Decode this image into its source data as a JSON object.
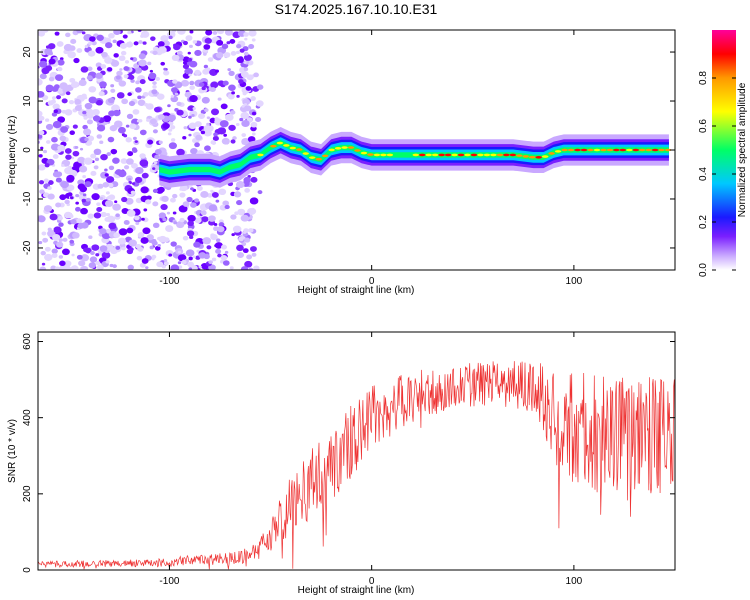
{
  "title": "S174.2025.167.10.10.E31",
  "chart_data": [
    {
      "type": "heatmap",
      "xlabel": "Height of straight line (km)",
      "ylabel": "Frequency (Hz)",
      "xlim": [
        -165,
        150
      ],
      "ylim": [
        -24.5,
        24.5
      ],
      "xticks": [
        -100,
        0,
        100
      ],
      "yticks": [
        -20,
        -10,
        0,
        10,
        20
      ],
      "colorbar": {
        "label": "Normalized spectral amplitude",
        "range": [
          0.0,
          1.0
        ],
        "ticks": [
          0.0,
          0.2,
          0.4,
          0.6,
          0.8
        ],
        "colormap": [
          "#ffffff",
          "#c9a8ff",
          "#7a1fff",
          "#1a1aff",
          "#00c8ff",
          "#00ff66",
          "#ffff00",
          "#ff9900",
          "#ff0000",
          "#ff0099"
        ]
      },
      "ridge": {
        "x": [
          -105,
          -100,
          -90,
          -80,
          -75,
          -70,
          -65,
          -60,
          -55,
          -50,
          -45,
          -40,
          -35,
          -30,
          -25,
          -20,
          -15,
          -10,
          -5,
          0,
          10,
          20,
          30,
          40,
          50,
          60,
          70,
          80,
          85,
          90,
          95,
          100,
          110,
          120,
          130,
          140,
          147
        ],
        "y": [
          -4,
          -4.5,
          -4,
          -4,
          -4.5,
          -3.5,
          -3,
          -1.5,
          -1,
          0.5,
          1.5,
          0.5,
          0,
          -1.5,
          -2,
          0,
          0.5,
          0.5,
          -0.5,
          -1,
          -1,
          -1,
          -1,
          -1,
          -1,
          -1,
          -1,
          -1.5,
          -1.5,
          -0.5,
          0,
          0,
          0,
          0,
          0,
          0,
          0
        ]
      }
    },
    {
      "type": "line",
      "xlabel": "Height of straight line (km)",
      "ylabel": "SNR (10 * v/v)",
      "xlim": [
        -165,
        150
      ],
      "ylim": [
        0,
        625
      ],
      "xticks": [
        -100,
        0,
        100
      ],
      "yticks": [
        0,
        200,
        400,
        600
      ],
      "series": [
        {
          "color": "#ee3333",
          "envelope": {
            "x": [
              -165,
              -110,
              -90,
              -70,
              -60,
              -55,
              -50,
              -45,
              -40,
              -35,
              -30,
              -25,
              -20,
              -15,
              -10,
              -5,
              0,
              10,
              20,
              30,
              40,
              50,
              60,
              70,
              80,
              85,
              90,
              95,
              100,
              110,
              120,
              130,
              140,
              150
            ],
            "y": [
              15,
              18,
              25,
              30,
              40,
              60,
              90,
              130,
              170,
              200,
              230,
              250,
              270,
              300,
              340,
              370,
              400,
              430,
              450,
              470,
              480,
              485,
              490,
              490,
              480,
              460,
              400,
              380,
              370,
              360,
              350,
              350,
              350,
              360
            ]
          },
          "spread": {
            "x": [
              -165,
              -110,
              -80,
              -60,
              -50,
              -40,
              -20,
              0,
              20,
              40,
              60,
              80,
              90,
              100,
              120,
              150
            ],
            "y": [
              8,
              10,
              15,
              20,
              40,
              80,
              100,
              90,
              70,
              60,
              60,
              70,
              120,
              150,
              160,
              160
            ]
          }
        }
      ]
    }
  ]
}
